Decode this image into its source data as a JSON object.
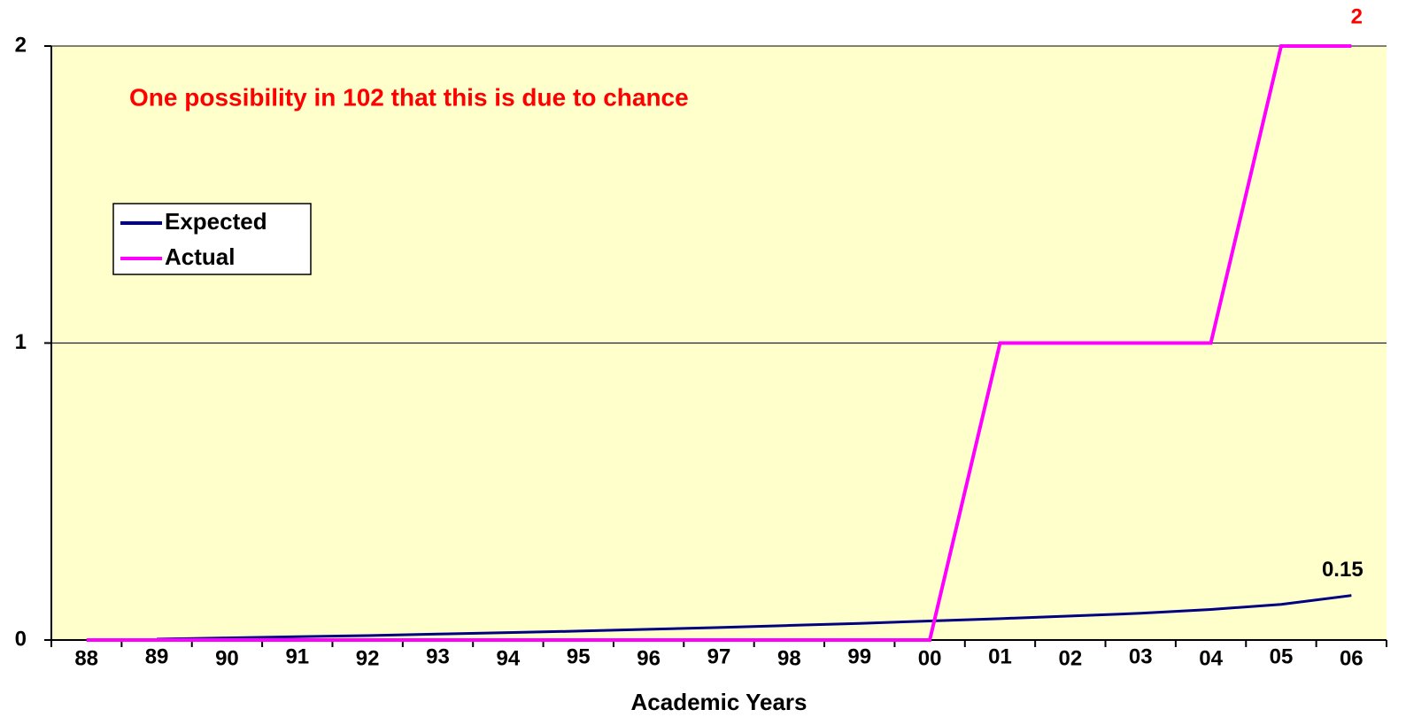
{
  "chart_data": {
    "type": "line",
    "annotation": "One possibility in 102 that this is due to chance",
    "x_label": "Academic Years",
    "categories": [
      "88",
      "89",
      "90",
      "91",
      "92",
      "93",
      "94",
      "95",
      "96",
      "97",
      "98",
      "99",
      "00",
      "01",
      "02",
      "03",
      "04",
      "05",
      "06"
    ],
    "series": [
      {
        "name": "Expected",
        "color": "#000080",
        "values": [
          null,
          0.003,
          0.007,
          0.011,
          0.015,
          0.02,
          0.025,
          0.03,
          0.036,
          0.042,
          0.049,
          0.056,
          0.064,
          0.072,
          0.081,
          0.09,
          0.103,
          0.12,
          0.15
        ]
      },
      {
        "name": "Actual",
        "color": "#ff00ff",
        "values": [
          0,
          0,
          0,
          0,
          0,
          0,
          0,
          0,
          0,
          0,
          0,
          0,
          0,
          1,
          1,
          1,
          1,
          2,
          2
        ]
      }
    ],
    "ylim": [
      0,
      2
    ],
    "yticks": [
      0,
      1,
      2
    ],
    "grid": true,
    "legend": "upper left"
  }
}
